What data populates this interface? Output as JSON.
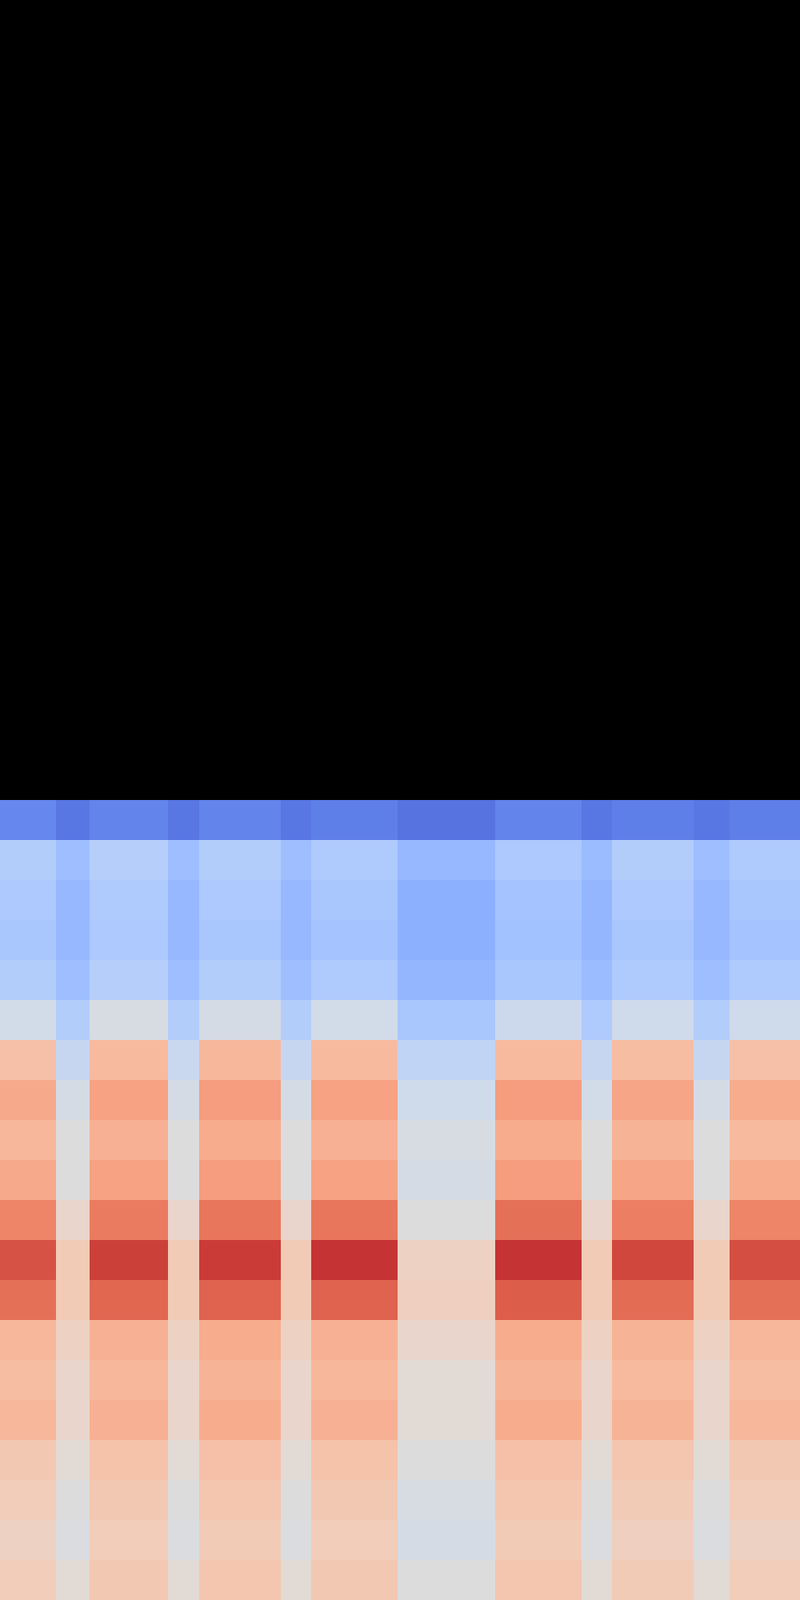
{
  "chart_data": {
    "type": "heatmap",
    "color": "coolwarm",
    "tick_labels": false,
    "x_edges": [
      0,
      70,
      112,
      210,
      249,
      351,
      389,
      497,
      619,
      727,
      765,
      867,
      912,
      1000
    ],
    "y_edges": [
      0,
      1,
      2,
      3,
      4,
      5,
      6,
      7,
      8,
      9,
      10,
      11,
      12,
      13,
      14,
      15,
      16,
      17,
      18,
      19,
      20
    ],
    "color_range": [
      0,
      1
    ],
    "cells": [
      [
        0.14,
        0.1,
        0.13,
        0.1,
        0.13,
        0.1,
        0.12,
        0.09,
        0.13,
        0.1,
        0.12,
        0.1,
        0.12
      ],
      [
        0.36,
        0.3,
        0.37,
        0.3,
        0.36,
        0.3,
        0.35,
        0.28,
        0.34,
        0.29,
        0.36,
        0.3,
        0.35
      ],
      [
        0.34,
        0.28,
        0.35,
        0.28,
        0.34,
        0.28,
        0.33,
        0.25,
        0.32,
        0.27,
        0.34,
        0.28,
        0.33
      ],
      [
        0.33,
        0.28,
        0.34,
        0.28,
        0.33,
        0.28,
        0.32,
        0.25,
        0.31,
        0.27,
        0.33,
        0.28,
        0.32
      ],
      [
        0.36,
        0.3,
        0.37,
        0.3,
        0.36,
        0.3,
        0.35,
        0.27,
        0.33,
        0.29,
        0.35,
        0.3,
        0.35
      ],
      [
        0.46,
        0.36,
        0.48,
        0.36,
        0.47,
        0.36,
        0.46,
        0.33,
        0.44,
        0.35,
        0.45,
        0.36,
        0.45
      ],
      [
        0.64,
        0.42,
        0.66,
        0.43,
        0.67,
        0.42,
        0.66,
        0.4,
        0.66,
        0.42,
        0.65,
        0.42,
        0.64
      ],
      [
        0.71,
        0.47,
        0.73,
        0.47,
        0.74,
        0.47,
        0.73,
        0.45,
        0.74,
        0.46,
        0.72,
        0.47,
        0.7
      ],
      [
        0.67,
        0.5,
        0.69,
        0.5,
        0.7,
        0.5,
        0.69,
        0.48,
        0.7,
        0.5,
        0.68,
        0.5,
        0.66
      ],
      [
        0.71,
        0.5,
        0.73,
        0.5,
        0.74,
        0.5,
        0.73,
        0.47,
        0.74,
        0.5,
        0.72,
        0.5,
        0.7
      ],
      [
        0.8,
        0.55,
        0.82,
        0.55,
        0.83,
        0.55,
        0.83,
        0.5,
        0.84,
        0.55,
        0.81,
        0.55,
        0.8
      ],
      [
        0.9,
        0.6,
        0.93,
        0.6,
        0.94,
        0.6,
        0.95,
        0.57,
        0.95,
        0.6,
        0.92,
        0.6,
        0.91
      ],
      [
        0.84,
        0.6,
        0.86,
        0.6,
        0.87,
        0.6,
        0.87,
        0.58,
        0.88,
        0.6,
        0.85,
        0.6,
        0.84
      ],
      [
        0.67,
        0.57,
        0.69,
        0.57,
        0.7,
        0.57,
        0.69,
        0.55,
        0.7,
        0.57,
        0.68,
        0.57,
        0.67
      ],
      [
        0.65,
        0.55,
        0.67,
        0.55,
        0.68,
        0.55,
        0.67,
        0.52,
        0.68,
        0.55,
        0.66,
        0.55,
        0.65
      ],
      [
        0.67,
        0.55,
        0.69,
        0.55,
        0.7,
        0.55,
        0.69,
        0.52,
        0.7,
        0.55,
        0.68,
        0.55,
        0.67
      ],
      [
        0.61,
        0.52,
        0.63,
        0.52,
        0.64,
        0.52,
        0.63,
        0.5,
        0.64,
        0.52,
        0.62,
        0.52,
        0.61
      ],
      [
        0.59,
        0.5,
        0.61,
        0.5,
        0.62,
        0.5,
        0.61,
        0.48,
        0.62,
        0.5,
        0.6,
        0.5,
        0.59
      ],
      [
        0.57,
        0.49,
        0.59,
        0.49,
        0.6,
        0.49,
        0.59,
        0.47,
        0.6,
        0.49,
        0.58,
        0.49,
        0.57
      ],
      [
        0.59,
        0.52,
        0.61,
        0.52,
        0.62,
        0.52,
        0.61,
        0.5,
        0.62,
        0.52,
        0.6,
        0.52,
        0.59
      ]
    ]
  }
}
